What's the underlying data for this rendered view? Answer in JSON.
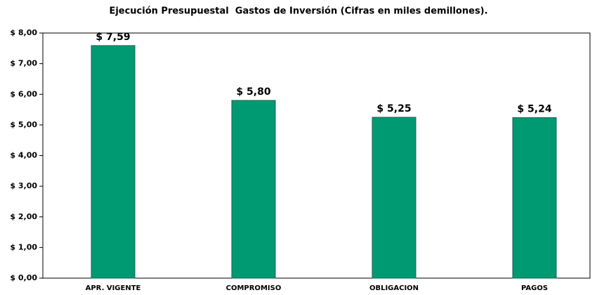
{
  "chart_data": {
    "type": "bar",
    "title": "Ejecución Presupuestal  Gastos de Inversión (Cifras en miles demillones).",
    "categories": [
      "APR. VIGENTE",
      "COMPROMISO",
      "OBLIGACION",
      "PAGOS"
    ],
    "values": [
      7.59,
      5.8,
      5.25,
      5.24
    ],
    "value_labels": [
      "$ 7,59",
      "$ 5,80",
      "$ 5,25",
      "$ 5,24"
    ],
    "color": "#009a72",
    "ylim": [
      0,
      8
    ],
    "yticks": [
      {
        "value": 0,
        "label": "$ 0,00"
      },
      {
        "value": 1,
        "label": "$ 1,00"
      },
      {
        "value": 2,
        "label": "$ 2,00"
      },
      {
        "value": 3,
        "label": "$ 3,00"
      },
      {
        "value": 4,
        "label": "$ 4,00"
      },
      {
        "value": 5,
        "label": "$ 5,00"
      },
      {
        "value": 6,
        "label": "$ 6,00"
      },
      {
        "value": 7,
        "label": "$ 7,00"
      },
      {
        "value": 8,
        "label": "$ 8,00"
      }
    ],
    "grid": false
  }
}
